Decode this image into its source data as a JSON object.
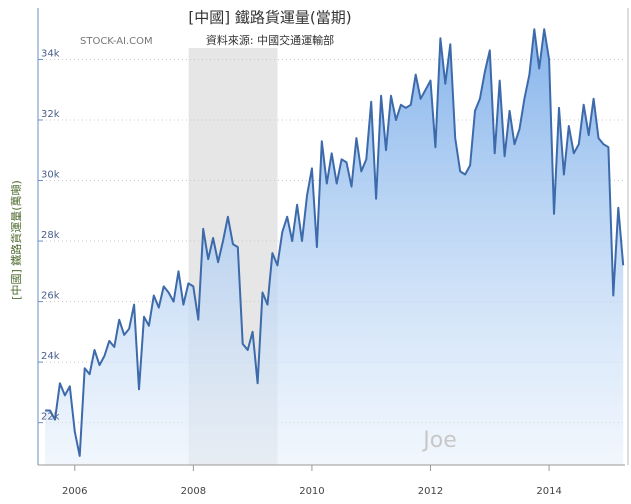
{
  "chart_data": {
    "type": "area",
    "title": "[中國] 鐵路貨運量(當期)",
    "subtitle": "資料來源: 中國交通運輸部",
    "watermark": "STOCK-AI.COM",
    "signature": "Joe",
    "y_axis_label": "[中國] 鐵路貨運量(萬噸)",
    "color": "#3d6aab",
    "grid": true,
    "plot_bands": [
      {
        "from": 2007.92,
        "to": 2009.42,
        "color": "#e6e6e6"
      }
    ],
    "xlim": [
      2005.38,
      2015.28
    ],
    "xticks": [
      2006,
      2008,
      2010,
      2012,
      2014
    ],
    "ylim": [
      20600,
      35700
    ],
    "yticks": [
      {
        "value": 22000,
        "label": "22k"
      },
      {
        "value": 24000,
        "label": "24k"
      },
      {
        "value": 26000,
        "label": "26k"
      },
      {
        "value": 28000,
        "label": "28k"
      },
      {
        "value": 30000,
        "label": "30k"
      },
      {
        "value": 32000,
        "label": "32k"
      },
      {
        "value": 34000,
        "label": "34k"
      }
    ],
    "x": [
      2005.5,
      2005.583,
      2005.667,
      2005.75,
      2005.833,
      2005.917,
      2006,
      2006.083,
      2006.167,
      2006.25,
      2006.333,
      2006.417,
      2006.5,
      2006.583,
      2006.667,
      2006.75,
      2006.833,
      2006.917,
      2007,
      2007.083,
      2007.167,
      2007.25,
      2007.333,
      2007.417,
      2007.5,
      2007.583,
      2007.667,
      2007.75,
      2007.833,
      2007.917,
      2008,
      2008.083,
      2008.167,
      2008.25,
      2008.333,
      2008.417,
      2008.5,
      2008.583,
      2008.667,
      2008.75,
      2008.833,
      2008.917,
      2009,
      2009.083,
      2009.167,
      2009.25,
      2009.333,
      2009.417,
      2009.5,
      2009.583,
      2009.667,
      2009.75,
      2009.833,
      2009.917,
      2010,
      2010.083,
      2010.167,
      2010.25,
      2010.333,
      2010.417,
      2010.5,
      2010.583,
      2010.667,
      2010.75,
      2010.833,
      2010.917,
      2011,
      2011.083,
      2011.167,
      2011.25,
      2011.333,
      2011.417,
      2011.5,
      2011.583,
      2011.667,
      2011.75,
      2011.833,
      2011.917,
      2012,
      2012.083,
      2012.167,
      2012.25,
      2012.333,
      2012.417,
      2012.5,
      2012.583,
      2012.667,
      2012.75,
      2012.833,
      2012.917,
      2013,
      2013.083,
      2013.167,
      2013.25,
      2013.333,
      2013.417,
      2013.5,
      2013.583,
      2013.667,
      2013.75,
      2013.833,
      2013.917,
      2014,
      2014.083,
      2014.167,
      2014.25,
      2014.333,
      2014.417,
      2014.5,
      2014.583,
      2014.667,
      2014.75,
      2014.833,
      2014.917,
      2015,
      2015.083,
      2015.167,
      2015.25
    ],
    "values": [
      22400,
      22400,
      22100,
      23300,
      22900,
      23200,
      21700,
      20900,
      23800,
      23600,
      24400,
      23900,
      24200,
      24700,
      24500,
      25400,
      24900,
      25100,
      25900,
      23100,
      25500,
      25200,
      26200,
      25800,
      26500,
      26300,
      26000,
      27000,
      25900,
      26600,
      26500,
      25400,
      28400,
      27400,
      28100,
      27300,
      28000,
      28800,
      27900,
      27800,
      24600,
      24400,
      25000,
      23300,
      26300,
      25900,
      27600,
      27200,
      28300,
      28800,
      28000,
      29200,
      28000,
      29500,
      30400,
      27800,
      31300,
      29900,
      30900,
      29900,
      30700,
      30600,
      29800,
      31400,
      30300,
      30700,
      32600,
      29400,
      32800,
      31000,
      32800,
      32000,
      32500,
      32400,
      32500,
      33500,
      32700,
      33000,
      33300,
      31100,
      34700,
      33200,
      34500,
      31400,
      30300,
      30200,
      30500,
      32300,
      32700,
      33600,
      34300,
      30900,
      33300,
      30800,
      32300,
      31200,
      31700,
      32700,
      33500,
      35000,
      33700,
      35000,
      34000,
      28900,
      32400,
      30200,
      31800,
      30900,
      31200,
      32500,
      31500,
      32700,
      31400,
      31200,
      31100,
      26200,
      29100,
      27200
    ]
  }
}
